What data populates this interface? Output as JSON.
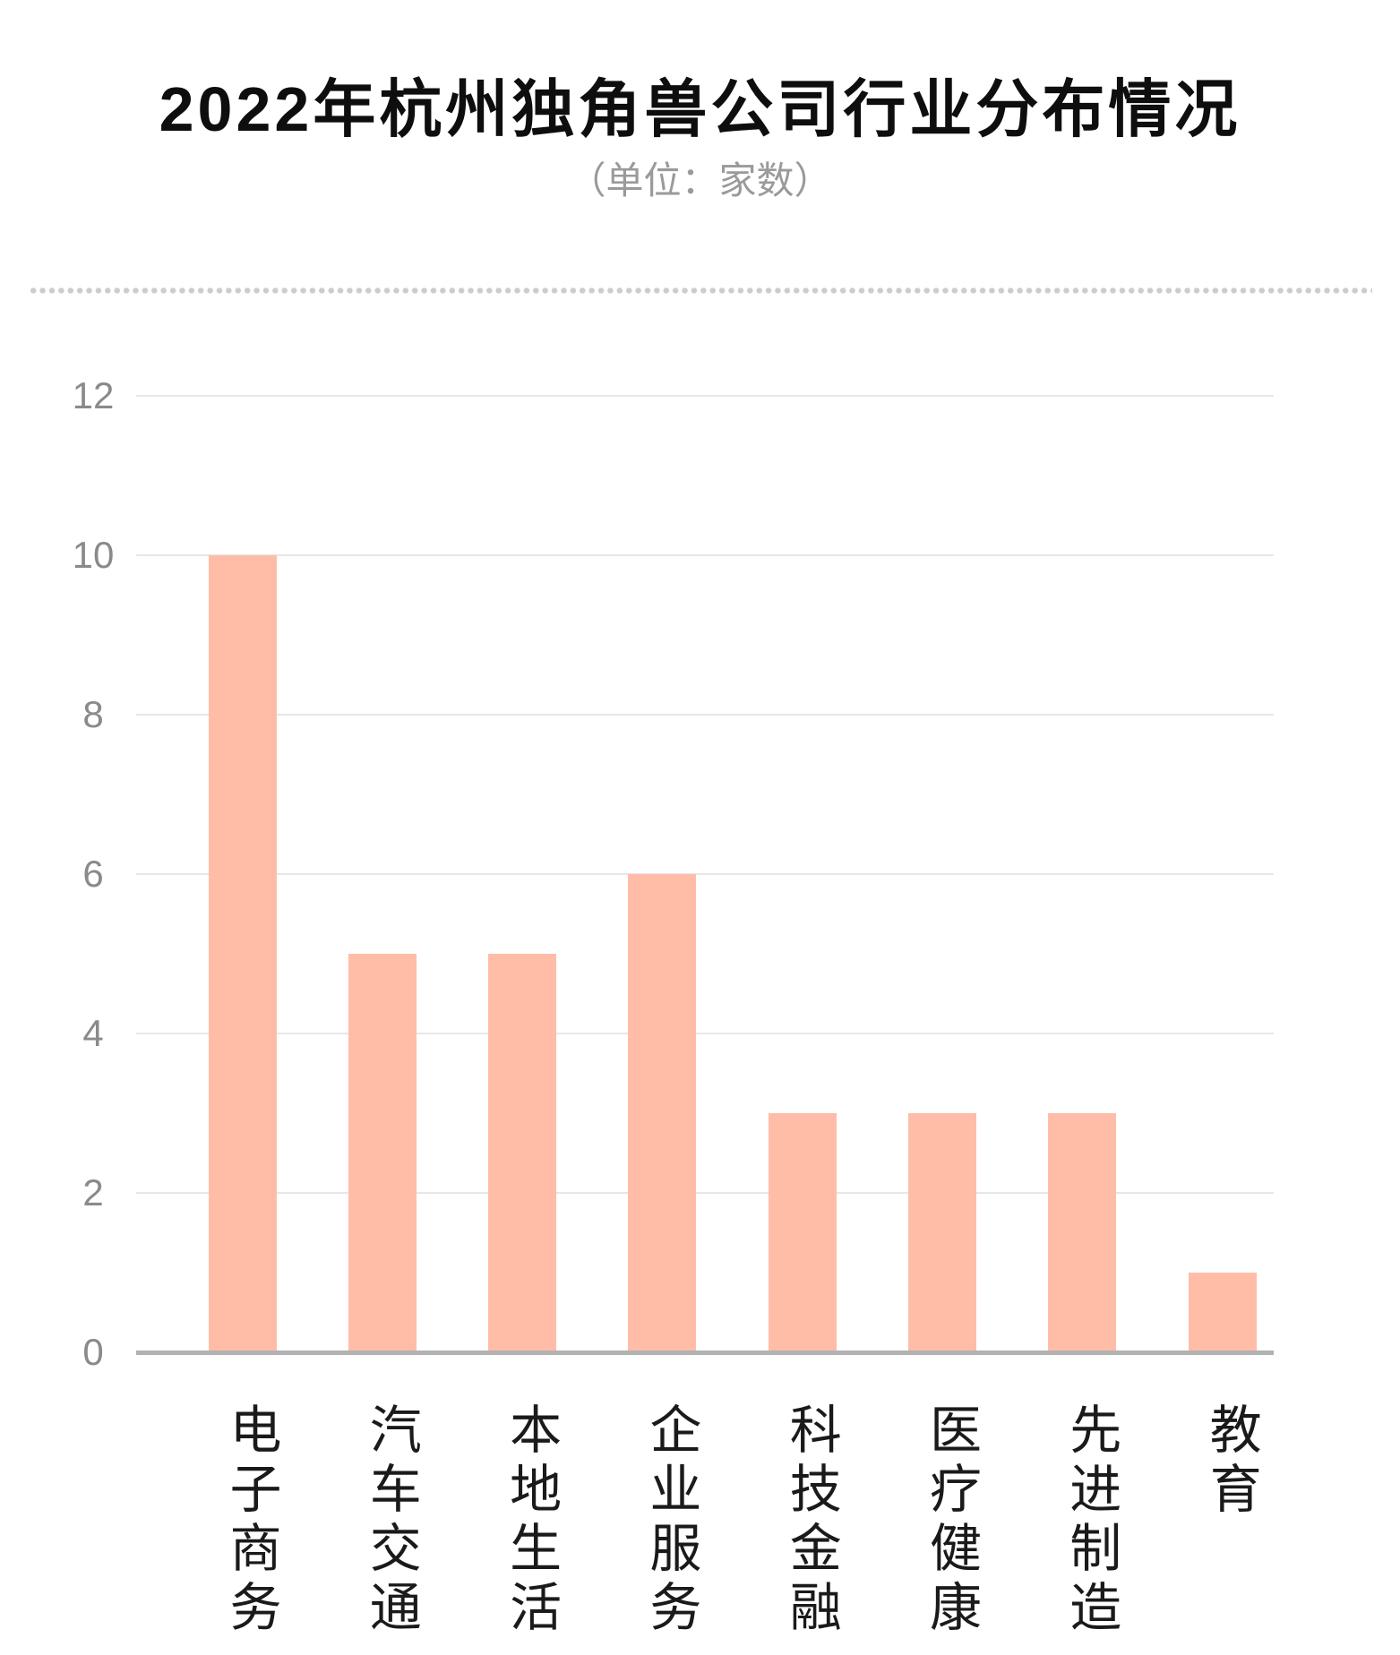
{
  "chart_data": {
    "type": "bar",
    "title": "2022年杭州独角兽公司行业分布情况",
    "subtitle": "（单位：家数）",
    "categories": [
      "电子商务",
      "汽车交通",
      "本地生活",
      "企业服务",
      "科技金融",
      "医疗健康",
      "先进制造",
      "教育"
    ],
    "values": [
      10,
      5,
      5,
      6,
      3,
      3,
      3,
      1
    ],
    "xlabel": "",
    "ylabel": "",
    "ylim": [
      0,
      12
    ],
    "yticks": [
      0,
      2,
      4,
      6,
      8,
      10,
      12
    ],
    "grid": true,
    "legend": false,
    "colors": {
      "bar": "#ffbda8",
      "gridline": "#e7e7ea",
      "axis_line": "#b2b2b2",
      "y_tick_label": "#8a8a8a",
      "x_label": "#1a1a1a",
      "title": "#0e0e0e",
      "subtitle": "#9a9a9a",
      "divider_dot": "#cccccc",
      "background": "#ffffff"
    }
  }
}
